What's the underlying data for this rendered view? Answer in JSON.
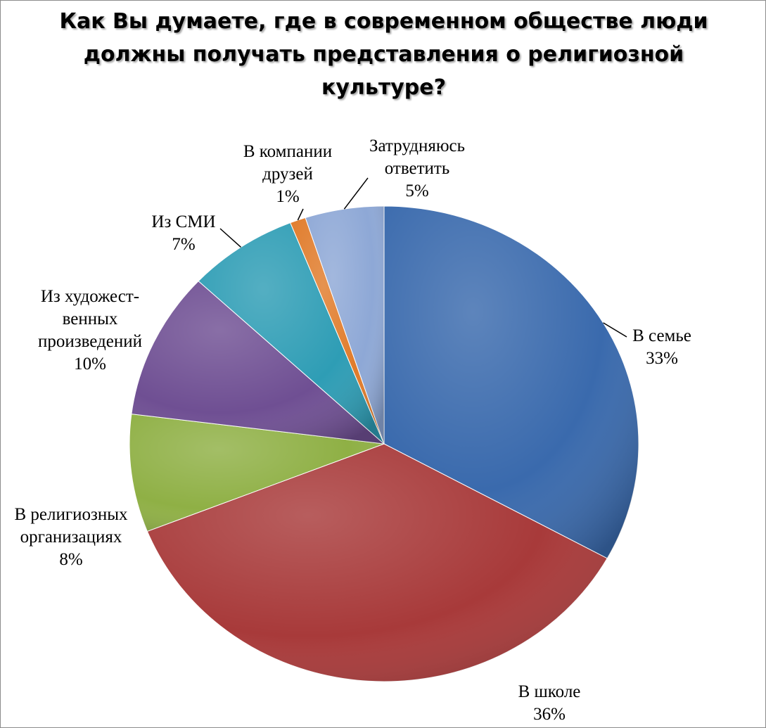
{
  "chart_data": {
    "type": "pie",
    "title": "Как Вы думаете, где в современном обществе люди должны получать представления о религиозной культуре?",
    "title_lines": [
      "Как Вы думаете, где в современном обществе люди",
      "должны получать представления о религиозной",
      "культуре?"
    ],
    "slices": [
      {
        "label_lines": [
          "В семье"
        ],
        "value": 33,
        "value_label": "33%",
        "color": "#3a6aad"
      },
      {
        "label_lines": [
          "В школе"
        ],
        "value": 36,
        "value_label": "36%",
        "color": "#a83a3a"
      },
      {
        "label_lines": [
          "В религиозных",
          "организациях"
        ],
        "value": 8,
        "value_label": "8%",
        "color": "#8fb045"
      },
      {
        "label_lines": [
          "Из художест-",
          "венных",
          "произведений"
        ],
        "value": 10,
        "value_label": "10%",
        "color": "#6f4f93"
      },
      {
        "label_lines": [
          "Из СМИ"
        ],
        "value": 7,
        "value_label": "7%",
        "color": "#2e9db5"
      },
      {
        "label_lines": [
          "В компании",
          "друзей"
        ],
        "value": 1,
        "value_label": "1%",
        "color": "#e07b2a"
      },
      {
        "label_lines": [
          "Затрудняюсь",
          "ответить"
        ],
        "value": 5,
        "value_label": "5%",
        "color": "#8ea8d6"
      }
    ],
    "start_angle_deg": 0,
    "direction": "clockwise",
    "legend": "none",
    "labels": "outside with leader lines"
  }
}
